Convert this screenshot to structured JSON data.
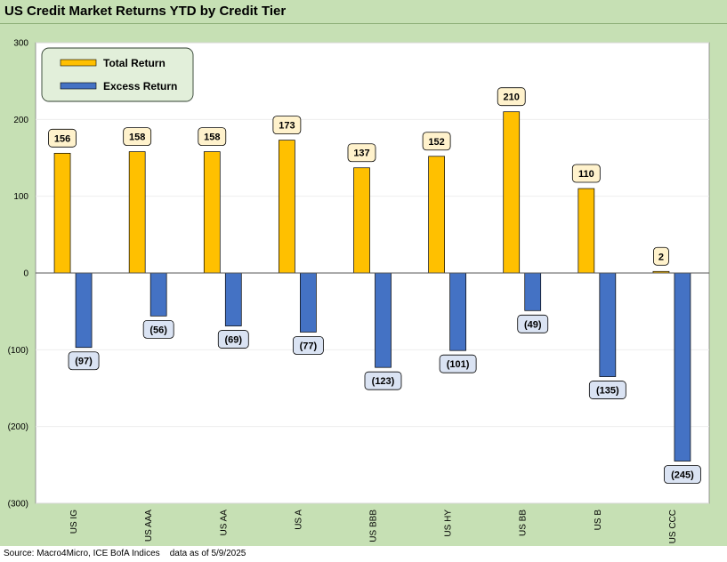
{
  "header": {
    "title": "US Credit Market Returns YTD by Credit Tier"
  },
  "footer": {
    "source": "Source: Macro4Micro, ICE BofA Indices    data as of 5/9/2025"
  },
  "colors": {
    "background": "#c6e0b4",
    "plot_area": "#ffffff",
    "total_return": "#ffc000",
    "excess_return": "#4472c4",
    "total_label_fill": "#fff2cc",
    "excess_label_fill": "#dae3f3"
  },
  "chart_data": {
    "type": "bar",
    "title": "US Credit Market Returns YTD by Credit Tier",
    "categories": [
      "US IG",
      "US AAA",
      "US AA",
      "US A",
      "US BBB",
      "US HY",
      "US BB",
      "US B",
      "US CCC"
    ],
    "series": [
      {
        "name": "Total Return",
        "values": [
          156,
          158,
          158,
          173,
          137,
          152,
          210,
          110,
          2
        ]
      },
      {
        "name": "Excess Return",
        "values": [
          -97,
          -56,
          -69,
          -77,
          -123,
          -101,
          -49,
          -135,
          -245
        ]
      }
    ],
    "data_labels": {
      "Total Return": [
        "156",
        "158",
        "158",
        "173",
        "137",
        "152",
        "210",
        "110",
        "2"
      ],
      "Excess Return": [
        "(97)",
        "(56)",
        "(69)",
        "(77)",
        "(123)",
        "(101)",
        "(49)",
        "(135)",
        "(245)"
      ]
    },
    "y_ticks": [
      300,
      200,
      100,
      0,
      -100,
      -200,
      -300
    ],
    "y_tick_labels": [
      "300",
      "200",
      "100",
      "0",
      "(100)",
      "(200)",
      "(300)"
    ],
    "ylim": [
      -300,
      300
    ],
    "xlabel": "",
    "ylabel": "",
    "legend_position": "top-left",
    "grid": true
  }
}
